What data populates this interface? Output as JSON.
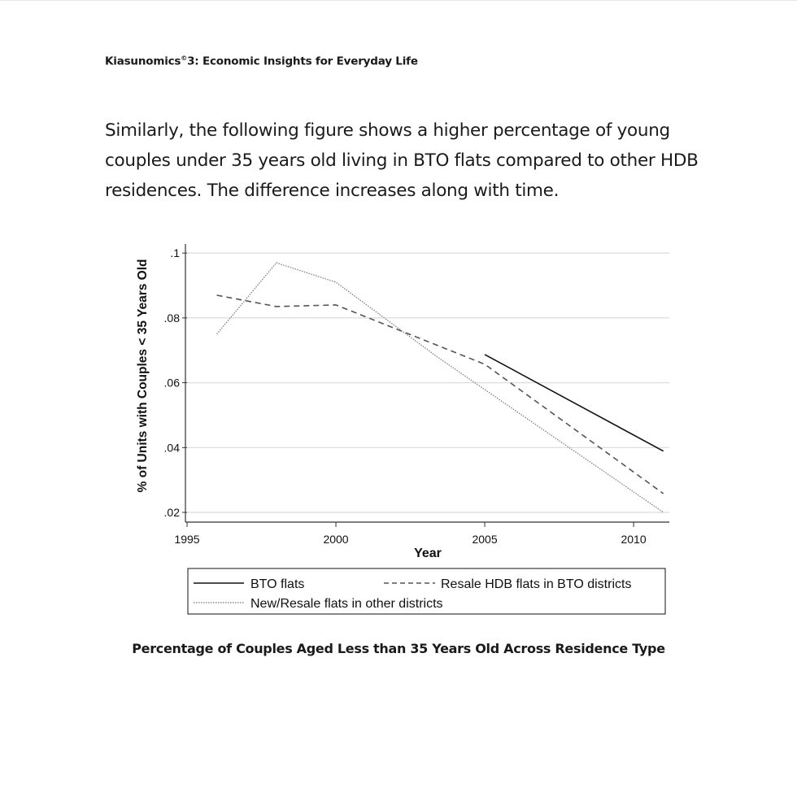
{
  "header": {
    "title_pre": "Kiasunomics",
    "title_sup": "©",
    "title_post": "3: Economic Insights for Everyday Life"
  },
  "body_text": "Similarly, the following figure shows a higher percentage of young couples under 35 years old living in BTO flats compared to other HDB residences. The difference increases along with time.",
  "caption": "Percentage of Couples Aged Less than 35 Years Old Across Residence Type",
  "chart_data": {
    "type": "line",
    "title": "",
    "xlabel": "Year",
    "ylabel": "% of Units with Couples < 35 Years Old",
    "xlim": [
      1995,
      2011.2
    ],
    "ylim": [
      0.0175,
      0.1028
    ],
    "xticks": [
      1995,
      2000,
      2005,
      2010
    ],
    "xtick_labels": [
      "1995",
      "2000",
      "2005",
      "2010"
    ],
    "yticks": [
      0.02,
      0.04,
      0.06,
      0.08,
      0.1
    ],
    "ytick_labels": [
      ".02",
      ".04",
      ".06",
      ".08",
      ".1"
    ],
    "grid": true,
    "legend_position": "bottom",
    "series": [
      {
        "name": "BTO flats",
        "style": "solid",
        "color": "#111111",
        "x": [
          2005,
          2011
        ],
        "y": [
          0.0687,
          0.0389
        ]
      },
      {
        "name": "Resale HDB flats in BTO districts",
        "style": "dashed",
        "color": "#555555",
        "x": [
          1996,
          1998,
          2000,
          2005,
          2011
        ],
        "y": [
          0.087,
          0.0835,
          0.084,
          0.0657,
          0.0258
        ]
      },
      {
        "name": "New/Resale flats in other districts",
        "style": "dotted",
        "color": "#777777",
        "x": [
          1996,
          1998,
          2000,
          2003.4,
          2011
        ],
        "y": [
          0.075,
          0.097,
          0.091,
          0.068,
          0.02
        ]
      }
    ]
  }
}
